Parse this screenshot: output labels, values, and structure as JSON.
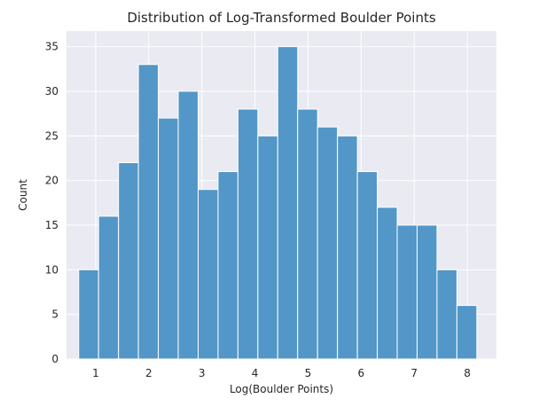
{
  "chart_data": {
    "type": "bar",
    "title": "Distribution of Log-Transformed Boulder Points",
    "xlabel": "Log(Boulder Points)",
    "ylabel": "Count",
    "xlim": [
      0.45,
      8.55
    ],
    "ylim": [
      0,
      36.75
    ],
    "xticks": [
      1,
      2,
      3,
      4,
      5,
      6,
      7,
      8
    ],
    "yticks": [
      0,
      5,
      10,
      15,
      20,
      25,
      30,
      35
    ],
    "bin_width": 0.375,
    "bins": [
      {
        "x0": 0.68,
        "x1": 1.055,
        "count": 10
      },
      {
        "x0": 1.055,
        "x1": 1.43,
        "count": 16
      },
      {
        "x0": 1.43,
        "x1": 1.805,
        "count": 22
      },
      {
        "x0": 1.805,
        "x1": 2.18,
        "count": 33
      },
      {
        "x0": 2.18,
        "x1": 2.555,
        "count": 27
      },
      {
        "x0": 2.555,
        "x1": 2.93,
        "count": 30
      },
      {
        "x0": 2.93,
        "x1": 3.305,
        "count": 19
      },
      {
        "x0": 3.305,
        "x1": 3.68,
        "count": 21
      },
      {
        "x0": 3.68,
        "x1": 4.055,
        "count": 28
      },
      {
        "x0": 4.055,
        "x1": 4.43,
        "count": 25
      },
      {
        "x0": 4.43,
        "x1": 4.805,
        "count": 35
      },
      {
        "x0": 4.805,
        "x1": 5.18,
        "count": 28
      },
      {
        "x0": 5.18,
        "x1": 5.555,
        "count": 26
      },
      {
        "x0": 5.555,
        "x1": 5.93,
        "count": 25
      },
      {
        "x0": 5.93,
        "x1": 6.305,
        "count": 21
      },
      {
        "x0": 6.305,
        "x1": 6.68,
        "count": 17
      },
      {
        "x0": 6.68,
        "x1": 7.055,
        "count": 15
      },
      {
        "x0": 7.055,
        "x1": 7.43,
        "count": 15
      },
      {
        "x0": 7.43,
        "x1": 7.805,
        "count": 10
      },
      {
        "x0": 7.805,
        "x1": 8.18,
        "count": 6
      }
    ],
    "grid": true,
    "colors": {
      "bar_fill": "#5297c7",
      "bar_edge": "#ffffff",
      "plot_bg": "#eaeaf2",
      "grid": "#ffffff",
      "text": "#262626"
    }
  }
}
